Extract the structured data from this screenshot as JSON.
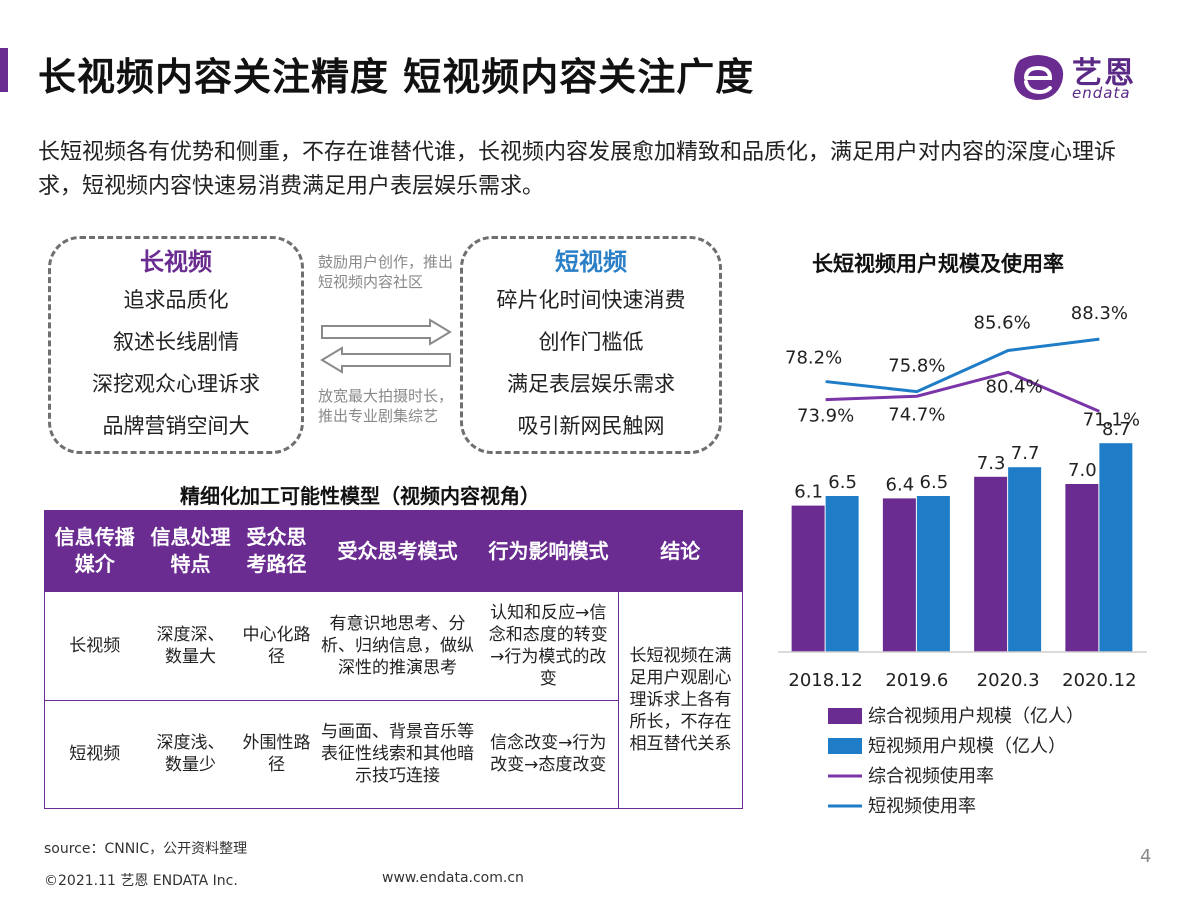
{
  "header": {
    "title": "长视频内容关注精度  短视频内容关注广度",
    "logo_cn": "艺恩",
    "logo_en": "endata",
    "accent_color": "#6a2c91"
  },
  "intro": "长短视频各有优势和侧重，不存在谁替代谁，长视频内容发展愈加精致和品质化，满足用户对内容的深度心理诉求，短视频内容快速易消费满足用户表层娱乐需求。",
  "comparison": {
    "long": {
      "title": "长视频",
      "items": [
        "追求品质化",
        "叙述长线剧情",
        "深挖观众心理诉求",
        "品牌营销空间大"
      ]
    },
    "short": {
      "title": "短视频",
      "items": [
        "碎片化时间快速消费",
        "创作门槛低",
        "满足表层娱乐需求",
        "吸引新网民触网"
      ]
    },
    "to_short_text": "鼓励用户创作，推出短视频内容社区",
    "to_long_text": "放宽最大拍摄时长，推出专业剧集综艺"
  },
  "model": {
    "title": "精细化加工可能性模型（视频内容视角）",
    "headers": [
      "信息传播媒介",
      "信息处理特点",
      "受众思考路径",
      "受众思考模式",
      "行为影响模式",
      "结论"
    ],
    "rows": [
      {
        "medium": "长视频",
        "feature": "深度深、数量大",
        "path": "中心化路径",
        "mode": "有意识地思考、分析、归纳信息，做纵深性的推演思考",
        "behavior": "认知和反应→信念和态度的转变→行为模式的改变"
      },
      {
        "medium": "短视频",
        "feature": "深度浅、数量少",
        "path": "外围性路径",
        "mode": "与画面、背景音乐等表征性线索和其他暗示技巧连接",
        "behavior": "信念改变→行为改变→态度改变"
      }
    ],
    "conclusion": "长短视频在满足用户观剧心理诉求上各有所长，不存在相互替代关系"
  },
  "chart_data": {
    "type": "bar",
    "title": "长短视频用户规模及使用率",
    "categories": [
      "2018.12",
      "2019.6",
      "2020.3",
      "2020.12"
    ],
    "series": [
      {
        "name": "综合视频用户规模（亿人）",
        "kind": "bar",
        "color": "#6a2c91",
        "values": [
          6.1,
          6.4,
          7.3,
          7.0
        ],
        "labels": [
          "6.1",
          "6.4",
          "7.3",
          "7.0"
        ]
      },
      {
        "name": "短视频用户规模（亿人）",
        "kind": "bar",
        "color": "#1f7cc7",
        "values": [
          6.5,
          6.5,
          7.7,
          8.7
        ],
        "labels": [
          "6.5",
          "6.5",
          "7.7",
          "8.7"
        ]
      },
      {
        "name": "综合视频使用率",
        "kind": "line",
        "color": "#7a35a8",
        "values": [
          73.9,
          74.7,
          80.4,
          71.1
        ],
        "labels": [
          "73.9%",
          "74.7%",
          "80.4%",
          "71.1%"
        ]
      },
      {
        "name": "短视频使用率",
        "kind": "line",
        "color": "#1f7cc7",
        "values": [
          78.2,
          75.8,
          85.6,
          88.3
        ],
        "labels": [
          "78.2%",
          "75.8%",
          "85.6%",
          "88.3%"
        ]
      }
    ],
    "legend_position": "bottom",
    "grid": false
  },
  "footer": {
    "source": "source：CNNIC，公开资料整理",
    "copyright": "©2021.11 艺恩 ENDATA Inc.",
    "website": "www.endata.com.cn",
    "page_number": "4"
  }
}
